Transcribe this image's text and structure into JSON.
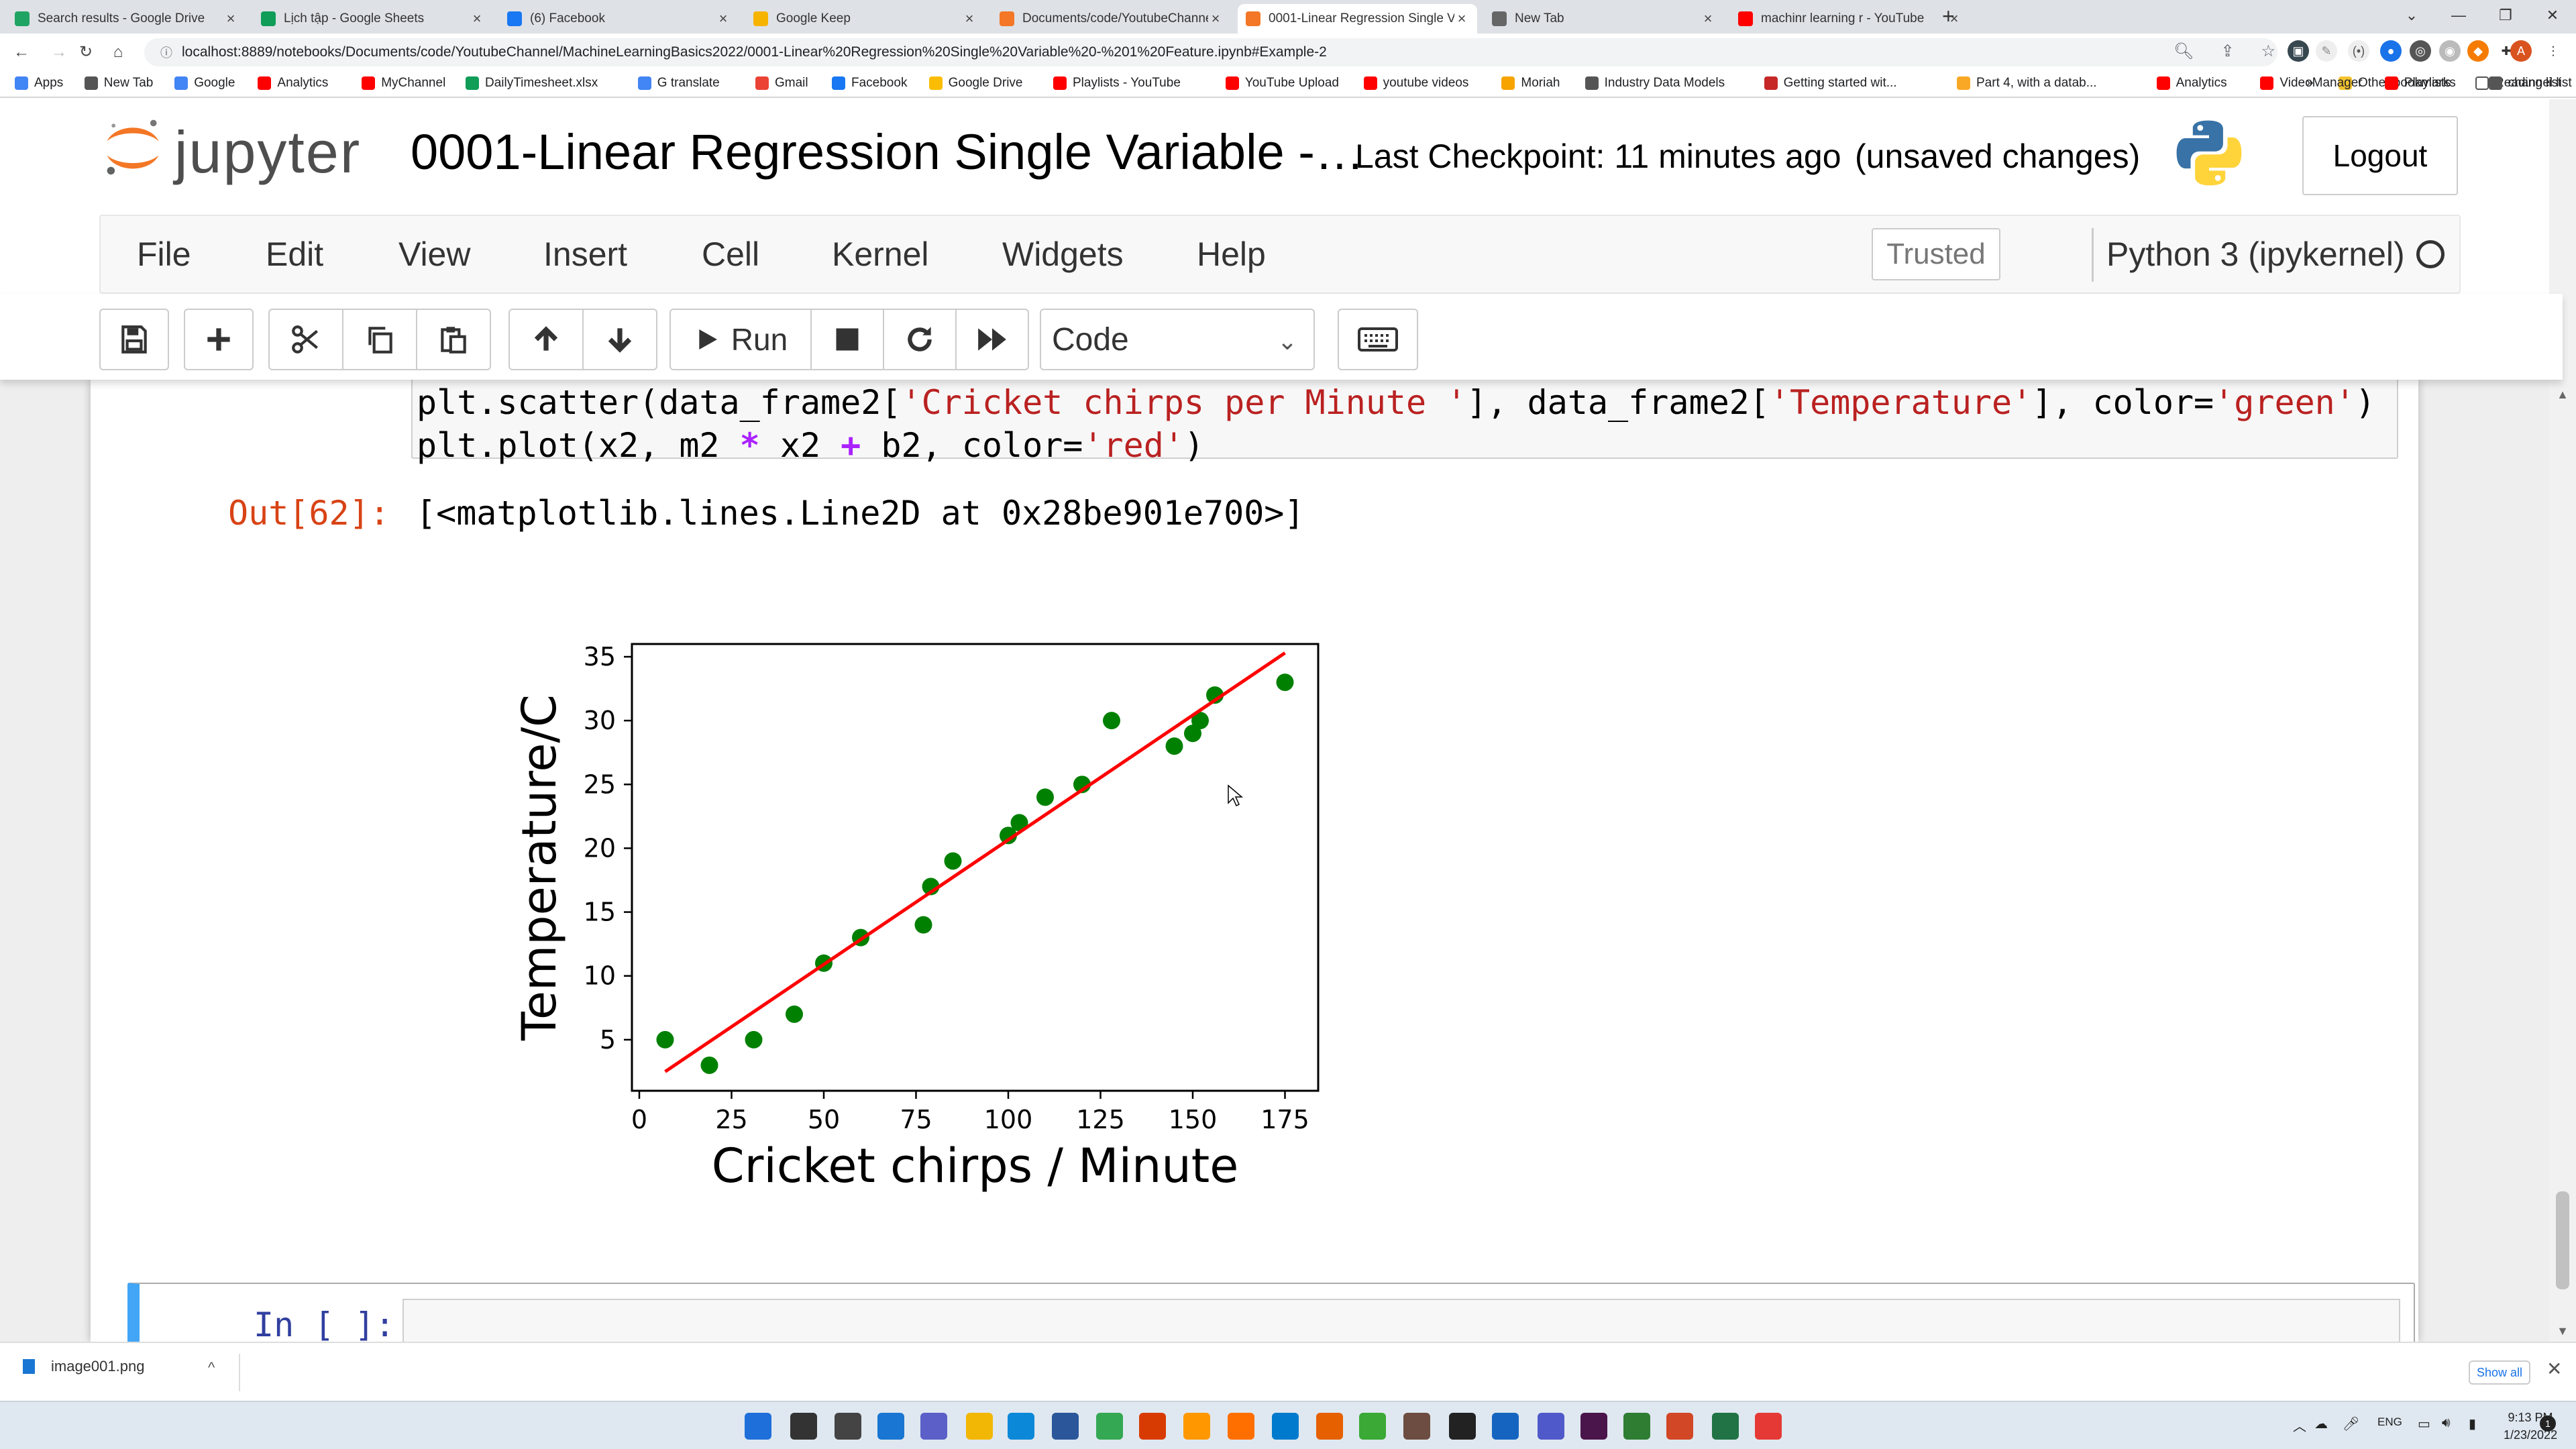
{
  "browser": {
    "tabs": [
      {
        "title": "Search results - Google Drive",
        "icon": "google-drive-icon",
        "color": "#1fa463"
      },
      {
        "title": "Lịch tập - Google Sheets",
        "icon": "google-sheets-icon",
        "color": "#0f9d58"
      },
      {
        "title": "(6) Facebook",
        "icon": "facebook-icon",
        "color": "#1877f2"
      },
      {
        "title": "Google Keep",
        "icon": "google-keep-icon",
        "color": "#f6b400"
      },
      {
        "title": "Documents/code/YoutubeChanne",
        "icon": "jupyter-icon",
        "color": "#f37726"
      },
      {
        "title": "0001-Linear Regression Single Va",
        "icon": "jupyter-icon",
        "color": "#f37726",
        "active": true
      },
      {
        "title": "New Tab",
        "icon": "chrome-icon",
        "color": "#666666"
      },
      {
        "title": "machinr learning r - YouTube",
        "icon": "youtube-icon",
        "color": "#ff0000"
      }
    ],
    "url": "localhost:8889/notebooks/Documents/code/YoutubeChannel/MachineLearningBasics2022/0001-Linear%20Regression%20Single%20Variable%20-%201%20Feature.ipynb#Example-2",
    "bookmarks": [
      {
        "label": "Apps",
        "color": "#4285f4"
      },
      {
        "label": "New Tab",
        "color": "#555555"
      },
      {
        "label": "Google",
        "color": "#4285f4"
      },
      {
        "label": "Analytics",
        "color": "#ff0000"
      },
      {
        "label": "MyChannel",
        "color": "#ff0000"
      },
      {
        "label": "DailyTimesheet.xlsx",
        "color": "#0f9d58"
      },
      {
        "label": "G translate",
        "color": "#4285f4"
      },
      {
        "label": "Gmail",
        "color": "#ea4335"
      },
      {
        "label": "Facebook",
        "color": "#1877f2"
      },
      {
        "label": "Google Drive",
        "color": "#fbbc04"
      },
      {
        "label": "Playlists - YouTube",
        "color": "#ff0000"
      },
      {
        "label": "YouTube Upload",
        "color": "#ff0000"
      },
      {
        "label": "youtube videos",
        "color": "#ff0000"
      },
      {
        "label": "Moriah",
        "color": "#f7a400"
      },
      {
        "label": "Industry Data Models",
        "color": "#555555"
      },
      {
        "label": "Getting started wit...",
        "color": "#c62828"
      },
      {
        "label": "Part 4, with a datab...",
        "color": "#f9a825"
      },
      {
        "label": "Analytics",
        "color": "#ff0000"
      },
      {
        "label": "VideoManager",
        "color": "#ff0000"
      },
      {
        "label": "Playlists",
        "color": "#ff0000"
      },
      {
        "label": "channel list",
        "color": "#555555"
      }
    ],
    "more_bookmarks": "»",
    "other_bookmarks": "Other bookmarks",
    "reading_list": "Reading list"
  },
  "notebook": {
    "logo_text": "jupyter",
    "title": "0001-Linear Regression Single Variable -…",
    "checkpoint": "Last Checkpoint: 11 minutes ago",
    "unsaved": "(unsaved changes)",
    "logout": "Logout",
    "menu": [
      "File",
      "Edit",
      "View",
      "Insert",
      "Cell",
      "Kernel",
      "Widgets",
      "Help"
    ],
    "trusted": "Trusted",
    "kernel": "Python 3 (ipykernel)",
    "run_label": "Run",
    "cell_type": "Code",
    "code_line1": [
      "plt.scatter(data_frame2[",
      "'Cricket chirps per Minute '",
      "], data_frame2[",
      "'Temperature'",
      "], color=",
      "'green'",
      ")"
    ],
    "code_line2": [
      "plt.plot(x2, m2 ",
      "*",
      " x2 ",
      "+",
      " b2, color=",
      "'red'",
      ")"
    ],
    "out_prompt": "Out[62]:",
    "out_text": "[<matplotlib.lines.Line2D at 0x28be901e700>]",
    "in_prompt": "In [ ]:"
  },
  "chart_data": {
    "type": "scatter",
    "xlabel": "Cricket chirps / Minute",
    "ylabel": "Temperature/C",
    "xlim": [
      -2,
      184
    ],
    "ylim": [
      1,
      36
    ],
    "xticks": [
      0,
      25,
      50,
      75,
      100,
      125,
      150,
      175
    ],
    "yticks": [
      5,
      10,
      15,
      20,
      25,
      30,
      35
    ],
    "series": [
      {
        "kind": "scatter",
        "color": "#008000",
        "points": [
          [
            7,
            5
          ],
          [
            19,
            3
          ],
          [
            31,
            5
          ],
          [
            42,
            7
          ],
          [
            50,
            11
          ],
          [
            60,
            13
          ],
          [
            77,
            14
          ],
          [
            79,
            17
          ],
          [
            85,
            19
          ],
          [
            100,
            21
          ],
          [
            103,
            22
          ],
          [
            110,
            24
          ],
          [
            120,
            25
          ],
          [
            128,
            30
          ],
          [
            145,
            28
          ],
          [
            150,
            29
          ],
          [
            152,
            30
          ],
          [
            156,
            32
          ],
          [
            175,
            33
          ]
        ]
      },
      {
        "kind": "line",
        "color": "#ff0000",
        "points": [
          [
            7,
            2.5
          ],
          [
            175,
            35.3
          ]
        ]
      }
    ]
  },
  "downloads": {
    "file": "image001.png",
    "show_all": "Show all"
  },
  "clock": {
    "time": "9:13 PM",
    "date": "1/23/2022",
    "lang": "ENG"
  }
}
